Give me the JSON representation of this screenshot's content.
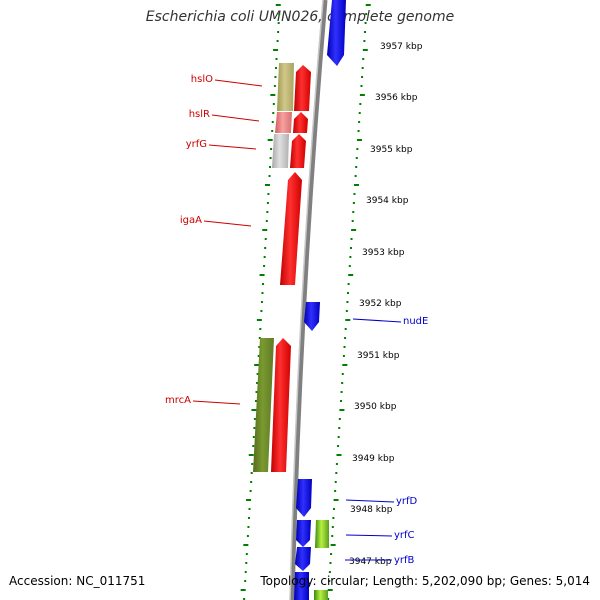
{
  "title": "Escherichia coli UMN026, complete genome",
  "footer": {
    "accession": "Accession: NC_011751",
    "summary": "Topology: circular; Length: 5,202,090 bp; Genes: 5,014"
  },
  "scale_labels": [
    "3957 kbp",
    "3956 kbp",
    "3955 kbp",
    "3954 kbp",
    "3953 kbp",
    "3952 kbp",
    "3951 kbp",
    "3950 kbp",
    "3949 kbp",
    "3948 kbp",
    "3947 kbp"
  ],
  "genes_left": [
    {
      "name": "hslO",
      "color": "#cc0000"
    },
    {
      "name": "hslR",
      "color": "#cc0000"
    },
    {
      "name": "yrfG",
      "color": "#cc0000"
    },
    {
      "name": "igaA",
      "color": "#cc0000"
    },
    {
      "name": "mrcA",
      "color": "#cc0000"
    }
  ],
  "genes_right": [
    {
      "name": "nudE",
      "color": "#0000cc"
    },
    {
      "name": "yrfD",
      "color": "#0000cc"
    },
    {
      "name": "yrfC",
      "color": "#0000cc"
    },
    {
      "name": "yrfB",
      "color": "#0000cc"
    }
  ],
  "colors": {
    "forward": "#ff0000",
    "reverse": "#0000ff",
    "olive": "#6b8e23",
    "khaki": "#bdb76b",
    "pink": "#f08080",
    "gray": "#c0c0c0",
    "lime": "#9acd32",
    "ring_dots": "#008000",
    "backbone": "#808080"
  }
}
